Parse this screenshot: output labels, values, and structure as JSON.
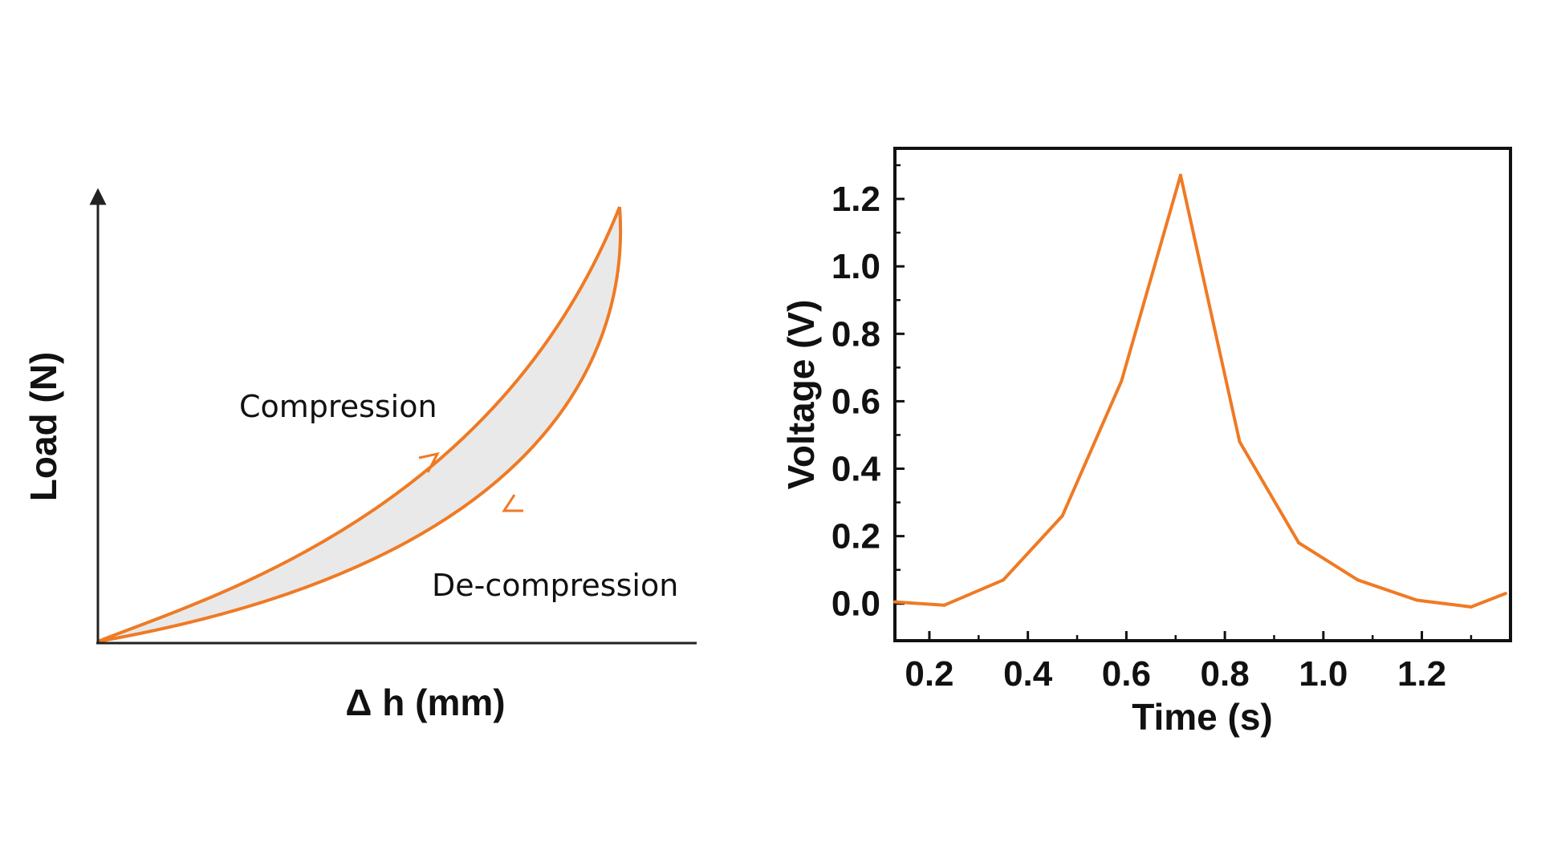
{
  "chart_data": [
    {
      "type": "line",
      "xlabel": "Δ h (mm)",
      "ylabel": "Load (N)",
      "annotations": [
        "Compression",
        "De-compression"
      ],
      "series": [
        {
          "name": "Compression",
          "x": [
            0,
            0.15,
            0.3,
            0.45,
            0.6,
            0.72,
            0.85,
            0.95,
            1.0
          ],
          "y": [
            0,
            0.08,
            0.17,
            0.28,
            0.42,
            0.55,
            0.73,
            0.9,
            1.0
          ]
        },
        {
          "name": "De-compression",
          "x": [
            0,
            0.2,
            0.4,
            0.55,
            0.7,
            0.82,
            0.92,
            0.98,
            1.0
          ],
          "y": [
            0,
            0.02,
            0.06,
            0.12,
            0.22,
            0.34,
            0.52,
            0.75,
            1.0
          ]
        }
      ],
      "colors": {
        "line": "#ef7a24",
        "fill": "#e9e9e9",
        "axis": "#222222"
      }
    },
    {
      "type": "line",
      "xlabel": "Time (s)",
      "ylabel": "Voltage (V)",
      "xlim": [
        0.13,
        1.38
      ],
      "ylim": [
        -0.11,
        1.35
      ],
      "xticks": [
        "0.2",
        "0.4",
        "0.6",
        "0.8",
        "1.0",
        "1.2"
      ],
      "yticks": [
        "0.0",
        "0.2",
        "0.4",
        "0.6",
        "0.8",
        "1.0",
        "1.2"
      ],
      "series": [
        {
          "x": [
            0.13,
            0.23,
            0.35,
            0.47,
            0.59,
            0.71,
            0.83,
            0.95,
            1.07,
            1.19,
            1.3,
            1.37
          ],
          "y": [
            0.005,
            -0.005,
            0.07,
            0.26,
            0.66,
            1.27,
            0.48,
            0.18,
            0.07,
            0.01,
            -0.01,
            0.03
          ]
        }
      ],
      "colors": {
        "line": "#ef7a24",
        "axis": "#111111"
      }
    }
  ]
}
